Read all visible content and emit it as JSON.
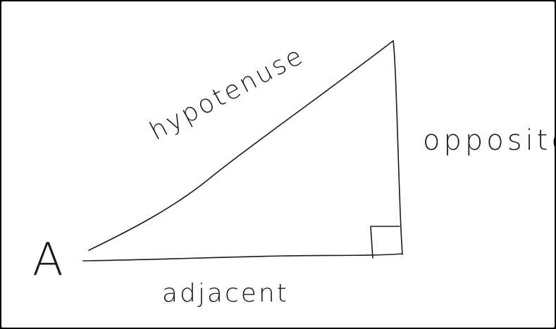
{
  "diagram": {
    "angle_label": "A",
    "hypotenuse_label": "hypotenuse",
    "opposite_label": "opposite",
    "adjacent_label": "adjacent",
    "ink_color": "#1a1a1a",
    "background_color": "#ffffff",
    "frame_color": "#000000",
    "right_angle_marker": "square"
  }
}
